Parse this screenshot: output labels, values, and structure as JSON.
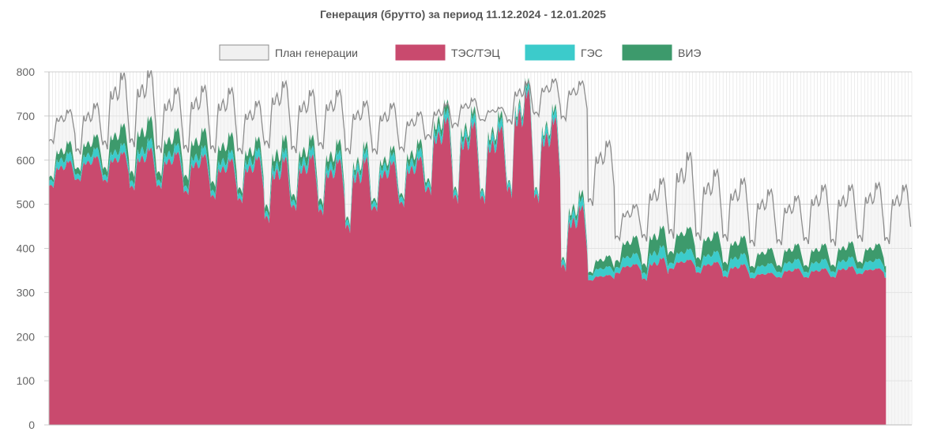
{
  "chart_data": {
    "type": "area",
    "title": "Генерация (брутто) за период 11.12.2024 - 12.01.2025",
    "xlabel": "",
    "ylabel": "",
    "ylim": [
      0,
      800
    ],
    "yticks": [
      0,
      100,
      200,
      300,
      400,
      500,
      600,
      700,
      800
    ],
    "x_start_date": "11.12.2024",
    "x_end_date": "12.01.2025",
    "stacked": true,
    "grid": true,
    "legend_position": "top",
    "colors": {
      "plan": "#8c8c8c",
      "plan_fill": "#f0f0f0",
      "tes": "#c94a6e",
      "ges": "#3ccbcb",
      "vie": "#3d9a6c",
      "grid": "#d8d8d8"
    },
    "series": [
      {
        "name": "План генерации",
        "kind": "line",
        "daily_low": [
          630,
          600,
          605,
          610,
          600,
          600,
          600,
          600,
          610,
          600,
          610,
          600,
          600,
          610,
          640,
          670,
          685,
          670,
          690,
          680,
          480,
          410,
          400,
          400,
          400,
          400,
          390,
          395,
          395,
          390,
          400,
          395
        ],
        "daily_high": [
          715,
          730,
          800,
          805,
          765,
          770,
          765,
          735,
          780,
          760,
          760,
          735,
          730,
          710,
          730,
          740,
          720,
          780,
          785,
          780,
          645,
          500,
          560,
          620,
          580,
          560,
          535,
          520,
          545,
          545,
          550,
          545
        ]
      },
      {
        "name": "ТЭС/ТЭЦ",
        "kind": "area",
        "daily_low": [
          530,
          545,
          540,
          520,
          525,
          510,
          500,
          490,
          440,
          470,
          460,
          415,
          470,
          480,
          500,
          480,
          480,
          485,
          480,
          330,
          325,
          340,
          320,
          350,
          340,
          330,
          330,
          330,
          330,
          330,
          340,
          330
        ],
        "daily_high": [
          600,
          610,
          620,
          630,
          620,
          615,
          605,
          610,
          610,
          615,
          605,
          610,
          600,
          610,
          700,
          690,
          680,
          765,
          700,
          500,
          340,
          365,
          380,
          375,
          370,
          365,
          345,
          355,
          355,
          360,
          355,
          350
        ]
      },
      {
        "name": "ГЭС",
        "kind": "area",
        "daily_low": [
          10,
          10,
          10,
          10,
          10,
          10,
          10,
          10,
          10,
          10,
          10,
          10,
          10,
          10,
          10,
          10,
          10,
          10,
          10,
          10,
          10,
          10,
          10,
          10,
          10,
          10,
          10,
          10,
          10,
          10,
          10,
          10
        ],
        "daily_high": [
          20,
          20,
          20,
          22,
          20,
          20,
          20,
          20,
          20,
          20,
          20,
          20,
          20,
          20,
          20,
          20,
          20,
          15,
          20,
          20,
          20,
          25,
          28,
          25,
          25,
          25,
          22,
          22,
          22,
          22,
          22,
          22
        ]
      },
      {
        "name": "ВИЭ",
        "kind": "area",
        "daily_low": [
          5,
          10,
          10,
          15,
          15,
          20,
          15,
          10,
          10,
          10,
          10,
          5,
          5,
          5,
          5,
          5,
          3,
          3,
          3,
          3,
          3,
          10,
          15,
          20,
          15,
          15,
          10,
          10,
          10,
          10,
          10,
          10
        ],
        "daily_high": [
          25,
          30,
          45,
          50,
          35,
          40,
          40,
          25,
          30,
          25,
          25,
          15,
          15,
          20,
          20,
          15,
          15,
          10,
          10,
          15,
          25,
          40,
          45,
          50,
          45,
          40,
          35,
          35,
          35,
          35,
          35,
          35
        ]
      }
    ]
  }
}
